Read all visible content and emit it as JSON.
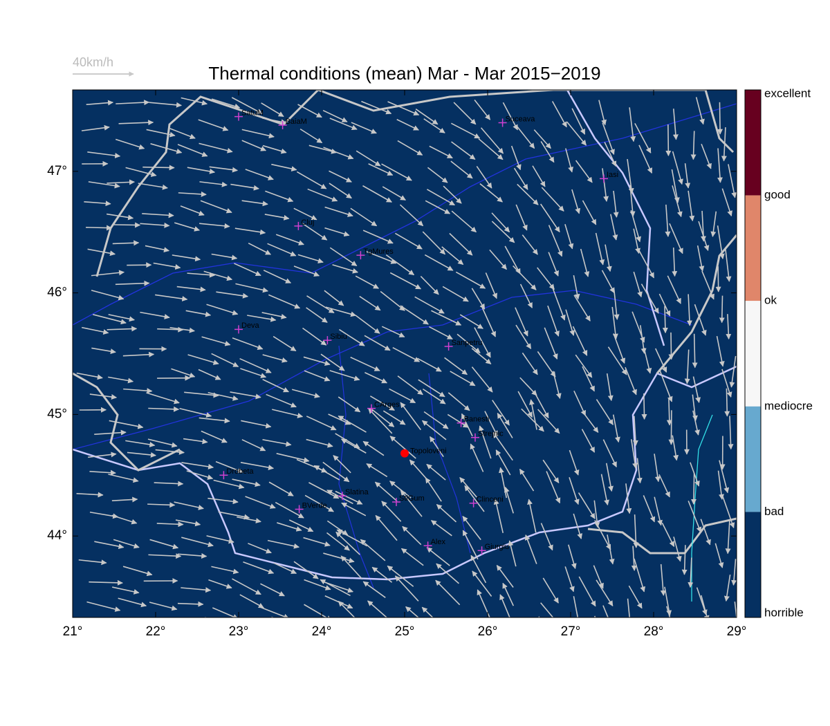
{
  "title": "Thermal conditions (mean) Mar - Mar  2015−2019",
  "scale_label": "40km/h",
  "map": {
    "background": "#053061",
    "xlim": [
      21,
      29
    ],
    "ylim": [
      43.33,
      47.67
    ],
    "xticks": [
      {
        "value": 21,
        "label": "21°"
      },
      {
        "value": 22,
        "label": "22°"
      },
      {
        "value": 23,
        "label": "23°"
      },
      {
        "value": 24,
        "label": "24°"
      },
      {
        "value": 25,
        "label": "25°"
      },
      {
        "value": 26,
        "label": "26°"
      },
      {
        "value": 27,
        "label": "27°"
      },
      {
        "value": 28,
        "label": "28°"
      },
      {
        "value": 29,
        "label": "29°"
      }
    ],
    "yticks": [
      {
        "value": 44,
        "label": "44°"
      },
      {
        "value": 45,
        "label": "45°"
      },
      {
        "value": 46,
        "label": "46°"
      },
      {
        "value": 47,
        "label": "47°"
      }
    ]
  },
  "cities": [
    {
      "name": "SatuM",
      "lon": 23.0,
      "lat": 47.45
    },
    {
      "name": "BaiaM",
      "lon": 23.53,
      "lat": 47.38
    },
    {
      "name": "Suceava",
      "lon": 26.18,
      "lat": 47.4
    },
    {
      "name": "Iasi",
      "lon": 27.4,
      "lat": 46.94
    },
    {
      "name": "Cluj",
      "lon": 23.72,
      "lat": 46.55
    },
    {
      "name": "TgMures",
      "lon": 24.47,
      "lat": 46.31
    },
    {
      "name": "Deva",
      "lon": 23.0,
      "lat": 45.7
    },
    {
      "name": "Sibiu",
      "lon": 24.07,
      "lat": 45.61
    },
    {
      "name": "Sanpetru",
      "lon": 25.53,
      "lat": 45.56
    },
    {
      "name": "CArges",
      "lon": 24.6,
      "lat": 45.05
    },
    {
      "name": "Banesti",
      "lon": 25.68,
      "lat": 44.93
    },
    {
      "name": "Strejnic",
      "lon": 25.85,
      "lat": 44.81
    },
    {
      "name": "Drobeta",
      "lon": 22.82,
      "lat": 44.5
    },
    {
      "name": "Slatina",
      "lon": 24.25,
      "lat": 44.33
    },
    {
      "name": "StlGum",
      "lon": 24.9,
      "lat": 44.28
    },
    {
      "name": "BVerde",
      "lon": 23.73,
      "lat": 44.22
    },
    {
      "name": "Clinceni",
      "lon": 25.83,
      "lat": 44.27
    },
    {
      "name": "Alex",
      "lon": 25.28,
      "lat": 43.92
    },
    {
      "name": "Giurgiu",
      "lon": 25.93,
      "lat": 43.88
    }
  ],
  "highlight": {
    "name": "Topoloveni",
    "lon": 25.0,
    "lat": 44.68,
    "color": "#ff0000"
  },
  "colorbar": {
    "labels": [
      "excellent",
      "good",
      "ok",
      "mediocre",
      "bad",
      "horrible"
    ],
    "colors": [
      "#67001f",
      "#e0866a",
      "#f7f7f7",
      "#67a9cf",
      "#053061"
    ]
  }
}
